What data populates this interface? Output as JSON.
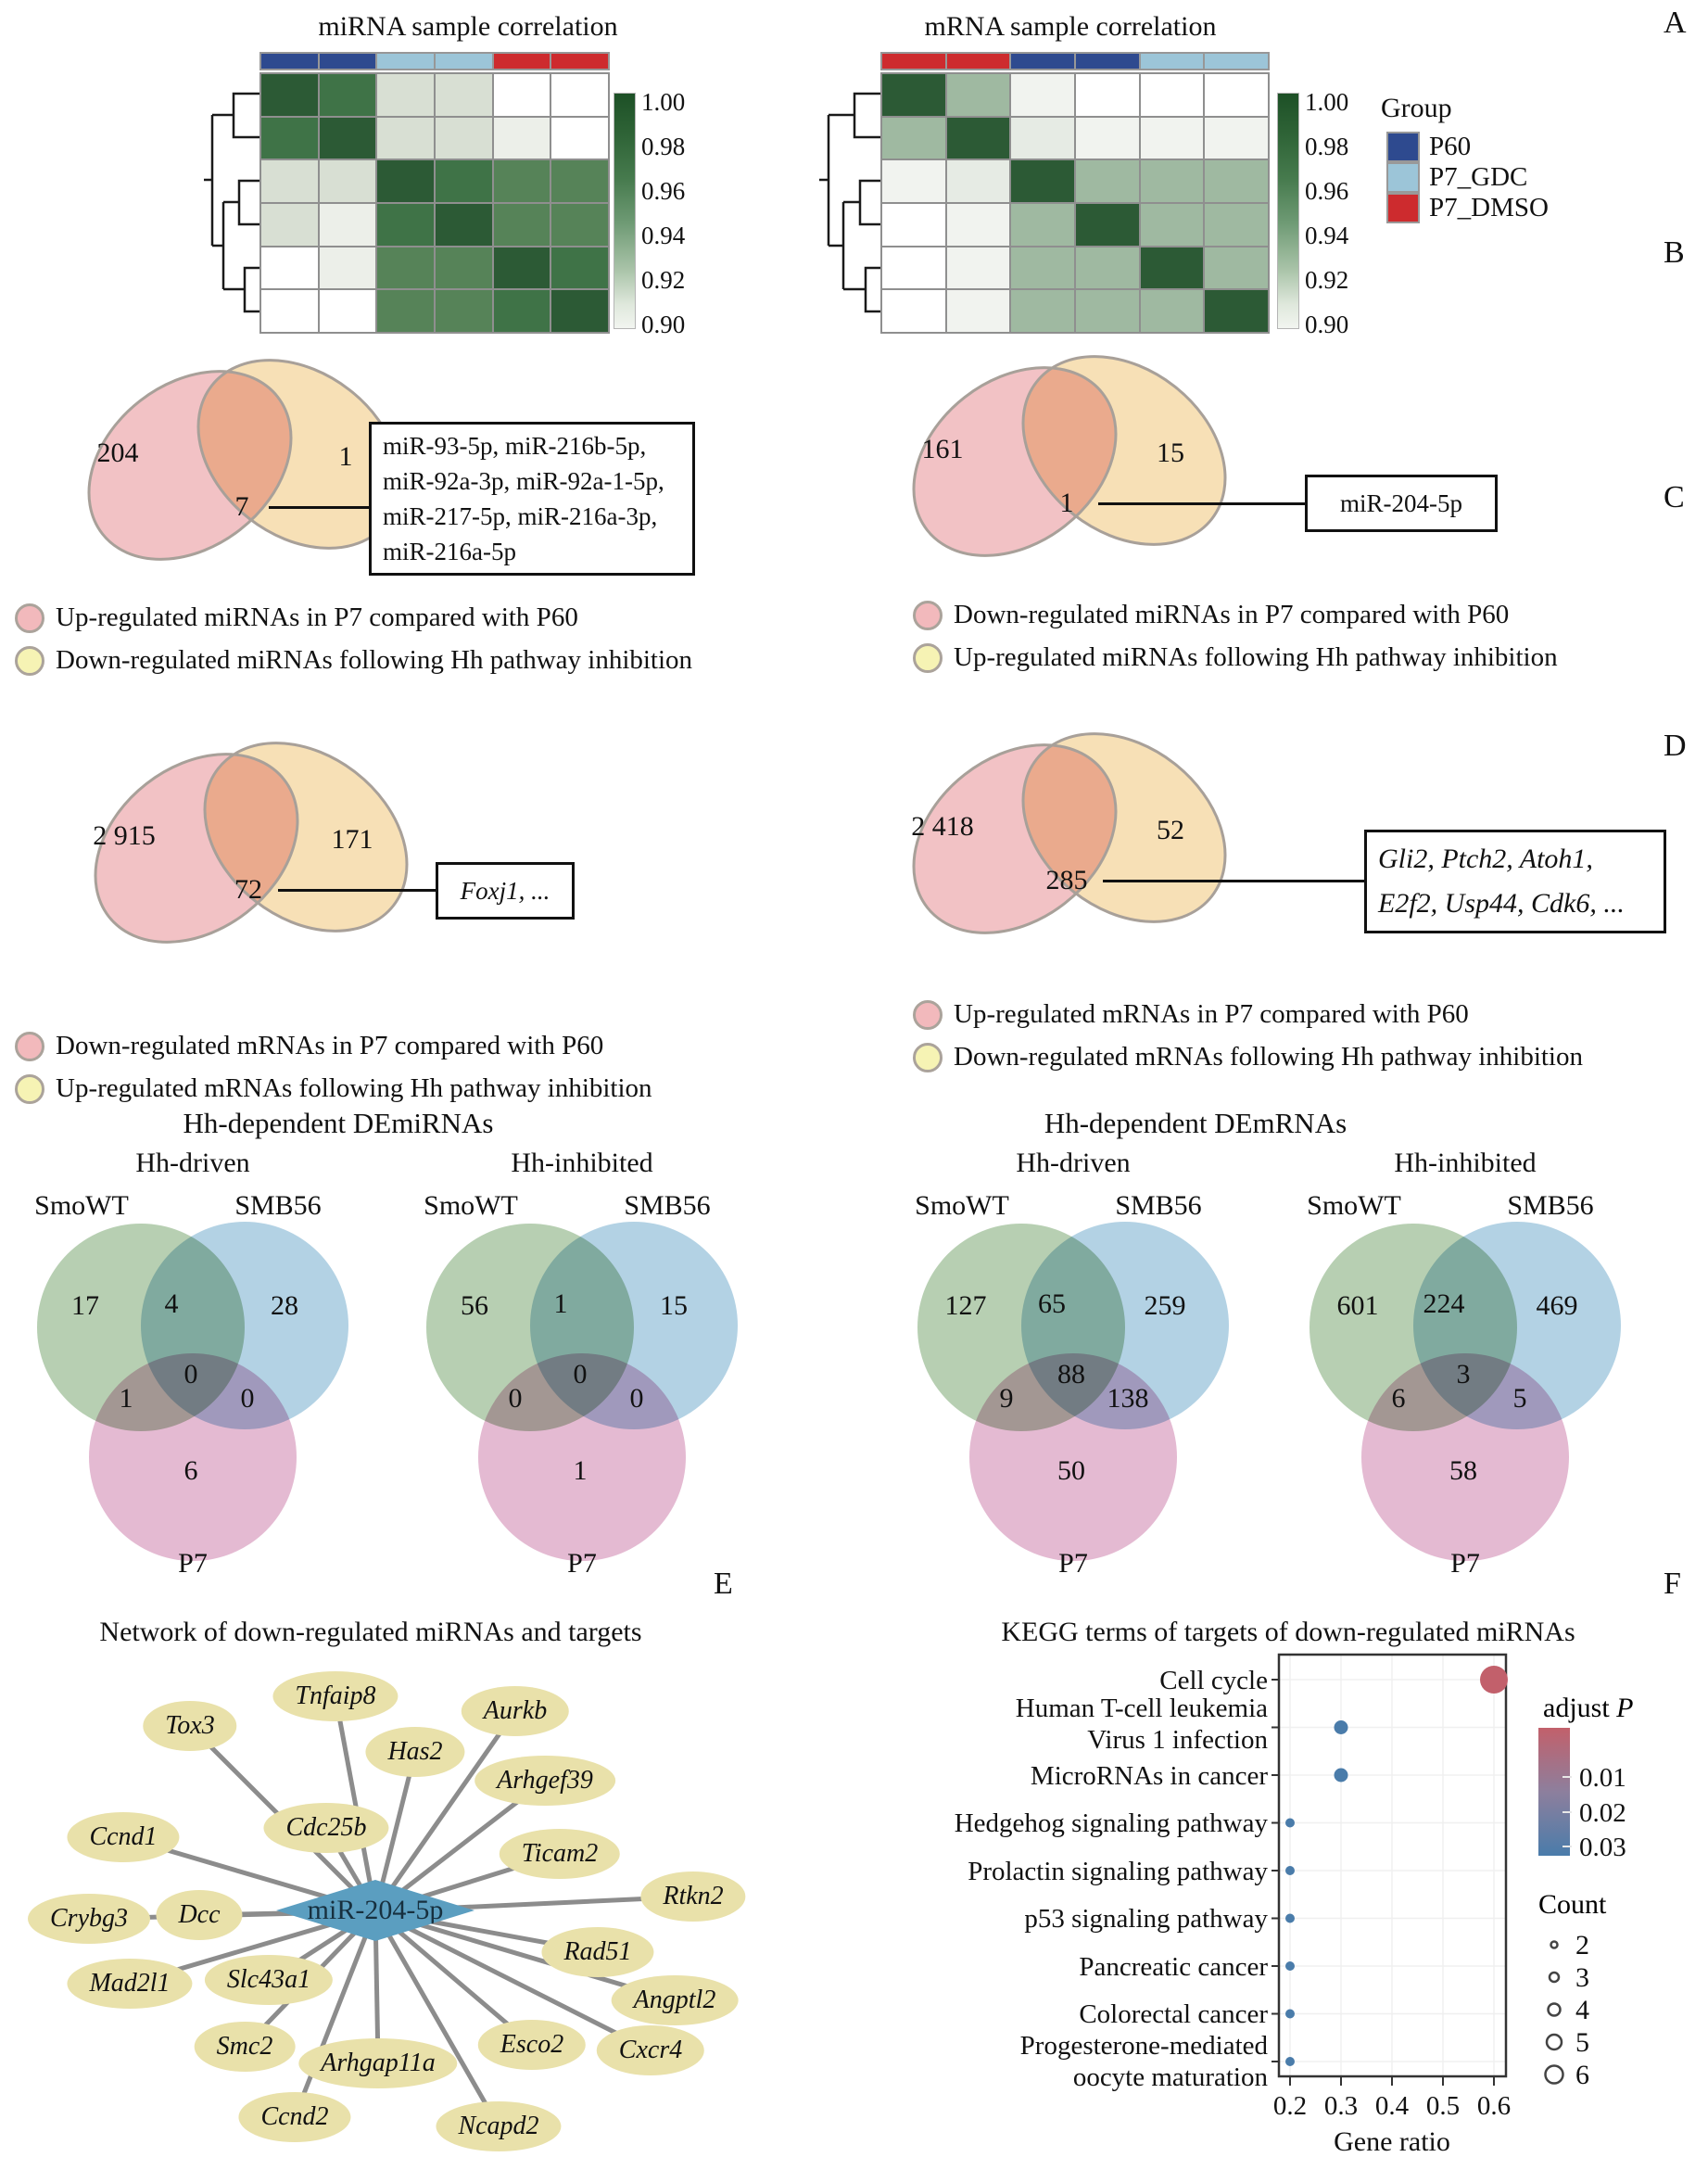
{
  "panels": {
    "a": "A",
    "b": "B",
    "c": "C",
    "d": "D",
    "e": "E",
    "f": "F"
  },
  "heatmap_section": {
    "colors": {
      "g1": "#2c5a35",
      "g2": "#3f7347",
      "g3": "#568358",
      "p": "#d8dfd3",
      "q": "#ecefe9",
      "w": "#ffffff",
      "s2": "#9fb9a1",
      "p2": "#e6ebe4",
      "q2": "#f1f3ef"
    },
    "mirna": {
      "title": "miRNA sample correlation",
      "cells": [
        [
          "g1",
          "g2",
          "p",
          "p",
          "w",
          "w"
        ],
        [
          "g2",
          "g1",
          "p",
          "p",
          "q",
          "w"
        ],
        [
          "p",
          "p",
          "g1",
          "g2",
          "g3",
          "g3"
        ],
        [
          "p",
          "q",
          "g2",
          "g1",
          "g3",
          "g3"
        ],
        [
          "w",
          "q",
          "g3",
          "g3",
          "g1",
          "g2"
        ],
        [
          "w",
          "w",
          "g3",
          "g3",
          "g2",
          "g1"
        ]
      ],
      "scale_labels": [
        "1.00",
        "0.98",
        "0.96",
        "0.94",
        "0.92",
        "0.90"
      ]
    },
    "mrna": {
      "title": "mRNA sample correlation",
      "cells": [
        [
          "g1",
          "s2",
          "q2",
          "w",
          "w",
          "w"
        ],
        [
          "s2",
          "g1",
          "p2",
          "q2",
          "q2",
          "q2"
        ],
        [
          "q2",
          "p2",
          "g1",
          "s2",
          "s2",
          "s2"
        ],
        [
          "w",
          "q2",
          "s2",
          "g1",
          "s2",
          "s2"
        ],
        [
          "w",
          "q2",
          "s2",
          "s2",
          "g1",
          "s2"
        ],
        [
          "w",
          "q2",
          "s2",
          "s2",
          "s2",
          "g1"
        ]
      ],
      "scale_labels": [
        "1.00",
        "0.98",
        "0.96",
        "0.94",
        "0.92",
        "0.90"
      ]
    },
    "group_legend": {
      "title": "Group",
      "items": [
        {
          "label": "P60"
        },
        {
          "label": "P7_GDC"
        },
        {
          "label": "P7_DMSO"
        }
      ]
    },
    "group_colors": {
      "P60": "#2e4a8f",
      "P7_GDC": "#9cc5d8",
      "P7_DMSO": "#cd2b2e"
    }
  },
  "venn2": {
    "b_left": {
      "a": "204",
      "b": "1",
      "ab": "7",
      "callout": [
        "miR-93-5p, miR-216b-5p,",
        "miR-92a-3p, miR-92a-1-5p,",
        "miR-217-5p, miR-216a-3p,",
        "miR-216a-5p"
      ],
      "legend": [
        "Up-regulated miRNAs in P7 compared with P60",
        "Down-regulated miRNAs following Hh pathway inhibition"
      ]
    },
    "b_right": {
      "a": "161",
      "b": "15",
      "ab": "1",
      "callout": [
        "miR-204-5p"
      ],
      "legend": [
        "Down-regulated miRNAs in P7 compared with P60",
        "Up-regulated miRNAs following Hh pathway inhibition"
      ]
    },
    "c_left": {
      "a": "2 915",
      "b": "171",
      "ab": "72",
      "callout": [
        "Foxj1, ..."
      ],
      "legend": [
        "Down-regulated mRNAs in P7 compared with P60",
        "Up-regulated mRNAs following Hh pathway inhibition"
      ]
    },
    "c_right": {
      "a": "2 418",
      "b": "52",
      "ab": "285",
      "callout": [
        "Gli2, Ptch2, Atoh1,",
        "E2f2, Usp44, Cdk6, ..."
      ],
      "legend": [
        "Up-regulated mRNAs in P7 compared with P60",
        "Down-regulated mRNAs following Hh pathway inhibition"
      ]
    }
  },
  "venn3": {
    "left_title": "Hh-dependent DEmiRNAs",
    "right_title": "Hh-dependent DEmRNAs",
    "diagrams": [
      {
        "subtitle": "Hh-driven",
        "labels": [
          "SmoWT",
          "SMB56",
          "P7"
        ],
        "a": "17",
        "ab": "4",
        "b": "28",
        "abc": "0",
        "ac": "1",
        "bc": "0",
        "c": "6"
      },
      {
        "subtitle": "Hh-inhibited",
        "labels": [
          "SmoWT",
          "SMB56",
          "P7"
        ],
        "a": "56",
        "ab": "1",
        "b": "15",
        "abc": "0",
        "ac": "0",
        "bc": "0",
        "c": "1"
      },
      {
        "subtitle": "Hh-driven",
        "labels": [
          "SmoWT",
          "SMB56",
          "P7"
        ],
        "a": "127",
        "ab": "65",
        "b": "259",
        "abc": "88",
        "ac": "9",
        "bc": "138",
        "c": "50"
      },
      {
        "subtitle": "Hh-inhibited",
        "labels": [
          "SmoWT",
          "SMB56",
          "P7"
        ],
        "a": "601",
        "ab": "224",
        "b": "469",
        "abc": "3",
        "ac": "6",
        "bc": "5",
        "c": "58"
      }
    ]
  },
  "network": {
    "title": "Network of  down-regulated miRNAs and targets",
    "hub": "miR-204-5p",
    "targets": [
      "Tnfaip8",
      "Tox3",
      "Aurkb",
      "Has2",
      "Arhgef39",
      "Cdc25b",
      "Ccnd1",
      "Ticam2",
      "Dcc",
      "Rtkn2",
      "Crybg3",
      "Rad51",
      "Mad2l1",
      "Slc43a1",
      "Angptl2",
      "Cxcr4",
      "Smc2",
      "Arhgap11a",
      "Esco2",
      "Ccnd2",
      "Ncapd2"
    ]
  },
  "kegg": {
    "title": "KEGG terms of targets of down-regulated miRNAs",
    "xlabel": "Gene ratio",
    "x_ticks": [
      "0.2",
      "0.3",
      "0.4",
      "0.5",
      "0.6"
    ],
    "rows": [
      {
        "lines": [
          "Cell cycle"
        ]
      },
      {
        "lines": [
          "Human T-cell leukemia",
          "Virus 1 infection"
        ]
      },
      {
        "lines": [
          "MicroRNAs in cancer"
        ]
      },
      {
        "lines": [
          "Hedgehog signaling pathway"
        ]
      },
      {
        "lines": [
          "Prolactin signaling pathway"
        ]
      },
      {
        "lines": [
          "p53 signaling pathway"
        ]
      },
      {
        "lines": [
          "Pancreatic cancer"
        ]
      },
      {
        "lines": [
          "Colorectal cancer"
        ]
      },
      {
        "lines": [
          "Progesterone-mediated",
          "oocyte maturation"
        ]
      }
    ],
    "legend_p": {
      "prefix": "adjust ",
      "symbol": "P",
      "ticks": [
        "0.01",
        "0.02",
        "0.03"
      ]
    },
    "legend_count": {
      "title": "Count",
      "sizes": [
        "2",
        "3",
        "4",
        "5",
        "6"
      ]
    }
  },
  "chart_data": [
    {
      "type": "heatmap",
      "title": "miRNA sample correlation",
      "groups": [
        "P60",
        "P60",
        "P7_GDC",
        "P7_GDC",
        "P7_DMSO",
        "P7_DMSO"
      ],
      "scale_range": [
        0.9,
        1.0
      ],
      "cell_color_classes": [
        [
          "g1",
          "g2",
          "p",
          "p",
          "w",
          "w"
        ],
        [
          "g2",
          "g1",
          "p",
          "p",
          "q",
          "w"
        ],
        [
          "p",
          "p",
          "g1",
          "g2",
          "g3",
          "g3"
        ],
        [
          "p",
          "q",
          "g2",
          "g1",
          "g3",
          "g3"
        ],
        [
          "w",
          "q",
          "g3",
          "g3",
          "g1",
          "g2"
        ],
        [
          "w",
          "w",
          "g3",
          "g3",
          "g2",
          "g1"
        ]
      ]
    },
    {
      "type": "heatmap",
      "title": "mRNA sample correlation",
      "groups": [
        "P7_DMSO",
        "P7_DMSO",
        "P60",
        "P60",
        "P7_GDC",
        "P7_GDC"
      ],
      "scale_range": [
        0.9,
        1.0
      ],
      "cell_color_classes": [
        [
          "g1",
          "s2",
          "q2",
          "w",
          "w",
          "w"
        ],
        [
          "s2",
          "g1",
          "p2",
          "q2",
          "q2",
          "q2"
        ],
        [
          "q2",
          "p2",
          "g1",
          "s2",
          "s2",
          "s2"
        ],
        [
          "w",
          "q2",
          "s2",
          "g1",
          "s2",
          "s2"
        ],
        [
          "w",
          "q2",
          "s2",
          "s2",
          "g1",
          "s2"
        ],
        [
          "w",
          "q2",
          "s2",
          "s2",
          "s2",
          "g1"
        ]
      ]
    },
    {
      "type": "venn2",
      "panel": "B-left",
      "left_set": "Up-regulated miRNAs in P7 compared with P60",
      "right_set": "Down-regulated miRNAs following Hh pathway inhibition",
      "left_only": 204,
      "right_only": 1,
      "overlap": 7,
      "overlap_items": "miR-93-5p, miR-216b-5p, miR-92a-3p, miR-92a-1-5p, miR-217-5p, miR-216a-3p, miR-216a-5p"
    },
    {
      "type": "venn2",
      "panel": "B-right",
      "left_set": "Down-regulated miRNAs in P7 compared with P60",
      "right_set": "Up-regulated miRNAs following Hh pathway inhibition",
      "left_only": 161,
      "right_only": 15,
      "overlap": 1,
      "overlap_items": "miR-204-5p"
    },
    {
      "type": "venn2",
      "panel": "C-left",
      "left_set": "Down-regulated mRNAs in P7 compared with P60",
      "right_set": "Up-regulated mRNAs following Hh pathway inhibition",
      "left_only": 2915,
      "right_only": 171,
      "overlap": 72,
      "overlap_items": "Foxj1, ..."
    },
    {
      "type": "venn2",
      "panel": "C-right",
      "left_set": "Up-regulated mRNAs in P7 compared with P60",
      "right_set": "Down-regulated mRNAs following Hh pathway inhibition",
      "left_only": 2418,
      "right_only": 52,
      "overlap": 285,
      "overlap_items": "Gli2, Ptch2, Atoh1, E2f2, Usp44, Cdk6, ..."
    },
    {
      "type": "venn3",
      "title": "Hh-dependent DEmiRNAs / Hh-driven",
      "sets": [
        "SmoWT",
        "SMB56",
        "P7"
      ],
      "only": [
        17,
        28,
        6
      ],
      "pair_SmoWT_SMB56": 4,
      "pair_SmoWT_P7": 1,
      "pair_SMB56_P7": 0,
      "triple": 0
    },
    {
      "type": "venn3",
      "title": "Hh-dependent DEmiRNAs / Hh-inhibited",
      "sets": [
        "SmoWT",
        "SMB56",
        "P7"
      ],
      "only": [
        56,
        15,
        1
      ],
      "pair_SmoWT_SMB56": 1,
      "pair_SmoWT_P7": 0,
      "pair_SMB56_P7": 0,
      "triple": 0
    },
    {
      "type": "venn3",
      "title": "Hh-dependent DEmRNAs / Hh-driven",
      "sets": [
        "SmoWT",
        "SMB56",
        "P7"
      ],
      "only": [
        127,
        259,
        50
      ],
      "pair_SmoWT_SMB56": 65,
      "pair_SmoWT_P7": 9,
      "pair_SMB56_P7": 138,
      "triple": 88
    },
    {
      "type": "venn3",
      "title": "Hh-dependent DEmRNAs / Hh-inhibited",
      "sets": [
        "SmoWT",
        "SMB56",
        "P7"
      ],
      "only": [
        601,
        469,
        58
      ],
      "pair_SmoWT_SMB56": 224,
      "pair_SmoWT_P7": 6,
      "pair_SMB56_P7": 5,
      "triple": 3
    },
    {
      "type": "network",
      "hub": "miR-204-5p",
      "targets": [
        "Tnfaip8",
        "Tox3",
        "Aurkb",
        "Has2",
        "Arhgef39",
        "Cdc25b",
        "Ccnd1",
        "Ticam2",
        "Dcc",
        "Rtkn2",
        "Crybg3",
        "Rad51",
        "Mad2l1",
        "Slc43a1",
        "Angptl2",
        "Cxcr4",
        "Smc2",
        "Arhgap11a",
        "Esco2",
        "Ccnd2",
        "Ncapd2"
      ]
    },
    {
      "type": "scatter",
      "title": "KEGG terms of targets of down-regulated miRNAs",
      "xlabel": "Gene ratio",
      "xlim": [
        0.17,
        0.64
      ],
      "legend": {
        "color": "adjust P",
        "color_ticks": [
          0.01,
          0.02,
          0.03
        ],
        "size": "Count",
        "size_ticks": [
          2,
          3,
          4,
          5,
          6
        ]
      },
      "point_colors": {
        "low_p": "#c2606b",
        "high_p": "#4a7caa"
      },
      "points": [
        {
          "category": "Cell cycle",
          "gene_ratio": 0.6,
          "count": 6,
          "adjust_p": 0.005
        },
        {
          "category": "Human T-cell leukemia Virus 1 infection",
          "gene_ratio": 0.3,
          "count": 3,
          "adjust_p": 0.03
        },
        {
          "category": "MicroRNAs in cancer",
          "gene_ratio": 0.3,
          "count": 3,
          "adjust_p": 0.03
        },
        {
          "category": "Hedgehog signaling pathway",
          "gene_ratio": 0.2,
          "count": 2,
          "adjust_p": 0.03
        },
        {
          "category": "Prolactin signaling pathway",
          "gene_ratio": 0.2,
          "count": 2,
          "adjust_p": 0.03
        },
        {
          "category": "p53 signaling pathway",
          "gene_ratio": 0.2,
          "count": 2,
          "adjust_p": 0.03
        },
        {
          "category": "Pancreatic cancer",
          "gene_ratio": 0.2,
          "count": 2,
          "adjust_p": 0.03
        },
        {
          "category": "Colorectal cancer",
          "gene_ratio": 0.2,
          "count": 2,
          "adjust_p": 0.03
        },
        {
          "category": "Progesterone-mediated oocyte maturation",
          "gene_ratio": 0.2,
          "count": 2,
          "adjust_p": 0.03
        }
      ]
    }
  ]
}
